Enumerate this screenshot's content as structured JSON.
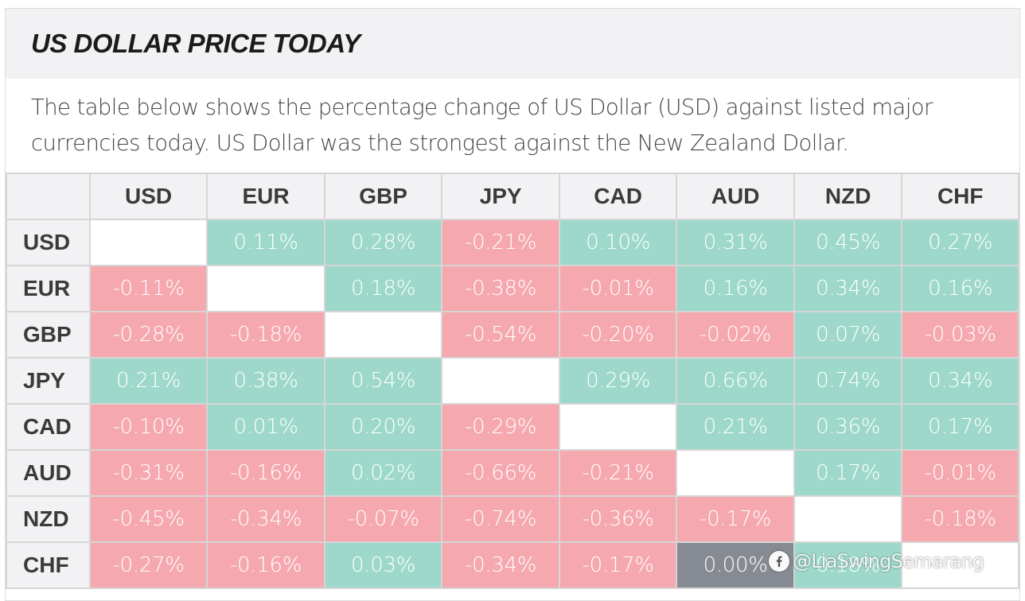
{
  "header": {
    "title": "US DOLLAR PRICE TODAY",
    "description": "The table below shows the percentage change of US Dollar (USD) against listed major currencies today. US Dollar was the strongest against the New Zealand Dollar."
  },
  "colors": {
    "positive": "#9dd8ca",
    "negative": "#f5a8ae",
    "highlight_zero": "#868a92",
    "empty": "#ffffff"
  },
  "columns": [
    "",
    "USD",
    "EUR",
    "GBP",
    "JPY",
    "CAD",
    "AUD",
    "NZD",
    "CHF"
  ],
  "rows": [
    {
      "label": "USD",
      "cells": [
        "",
        "0.11%",
        "0.28%",
        "-0.21%",
        "0.10%",
        "0.31%",
        "0.45%",
        "0.27%"
      ]
    },
    {
      "label": "EUR",
      "cells": [
        "-0.11%",
        "",
        "0.18%",
        "-0.38%",
        "-0.01%",
        "0.16%",
        "0.34%",
        "0.16%"
      ]
    },
    {
      "label": "GBP",
      "cells": [
        "-0.28%",
        "-0.18%",
        "",
        "-0.54%",
        "-0.20%",
        "-0.02%",
        "0.07%",
        "-0.03%"
      ]
    },
    {
      "label": "JPY",
      "cells": [
        "0.21%",
        "0.38%",
        "0.54%",
        "",
        "0.29%",
        "0.66%",
        "0.74%",
        "0.34%"
      ]
    },
    {
      "label": "CAD",
      "cells": [
        "-0.10%",
        "0.01%",
        "0.20%",
        "-0.29%",
        "",
        "0.21%",
        "0.36%",
        "0.17%"
      ]
    },
    {
      "label": "AUD",
      "cells": [
        "-0.31%",
        "-0.16%",
        "0.02%",
        "-0.66%",
        "-0.21%",
        "",
        "0.17%",
        "-0.01%"
      ]
    },
    {
      "label": "NZD",
      "cells": [
        "-0.45%",
        "-0.34%",
        "-0.07%",
        "-0.74%",
        "-0.36%",
        "-0.17%",
        "",
        "-0.18%"
      ]
    },
    {
      "label": "CHF",
      "cells": [
        "-0.27%",
        "-0.16%",
        "0.03%",
        "-0.34%",
        "-0.17%",
        "0.00%",
        "0.18%",
        ""
      ]
    }
  ],
  "watermark": {
    "icon": "facebook-icon",
    "text": "@LiaSwingSemarang"
  }
}
